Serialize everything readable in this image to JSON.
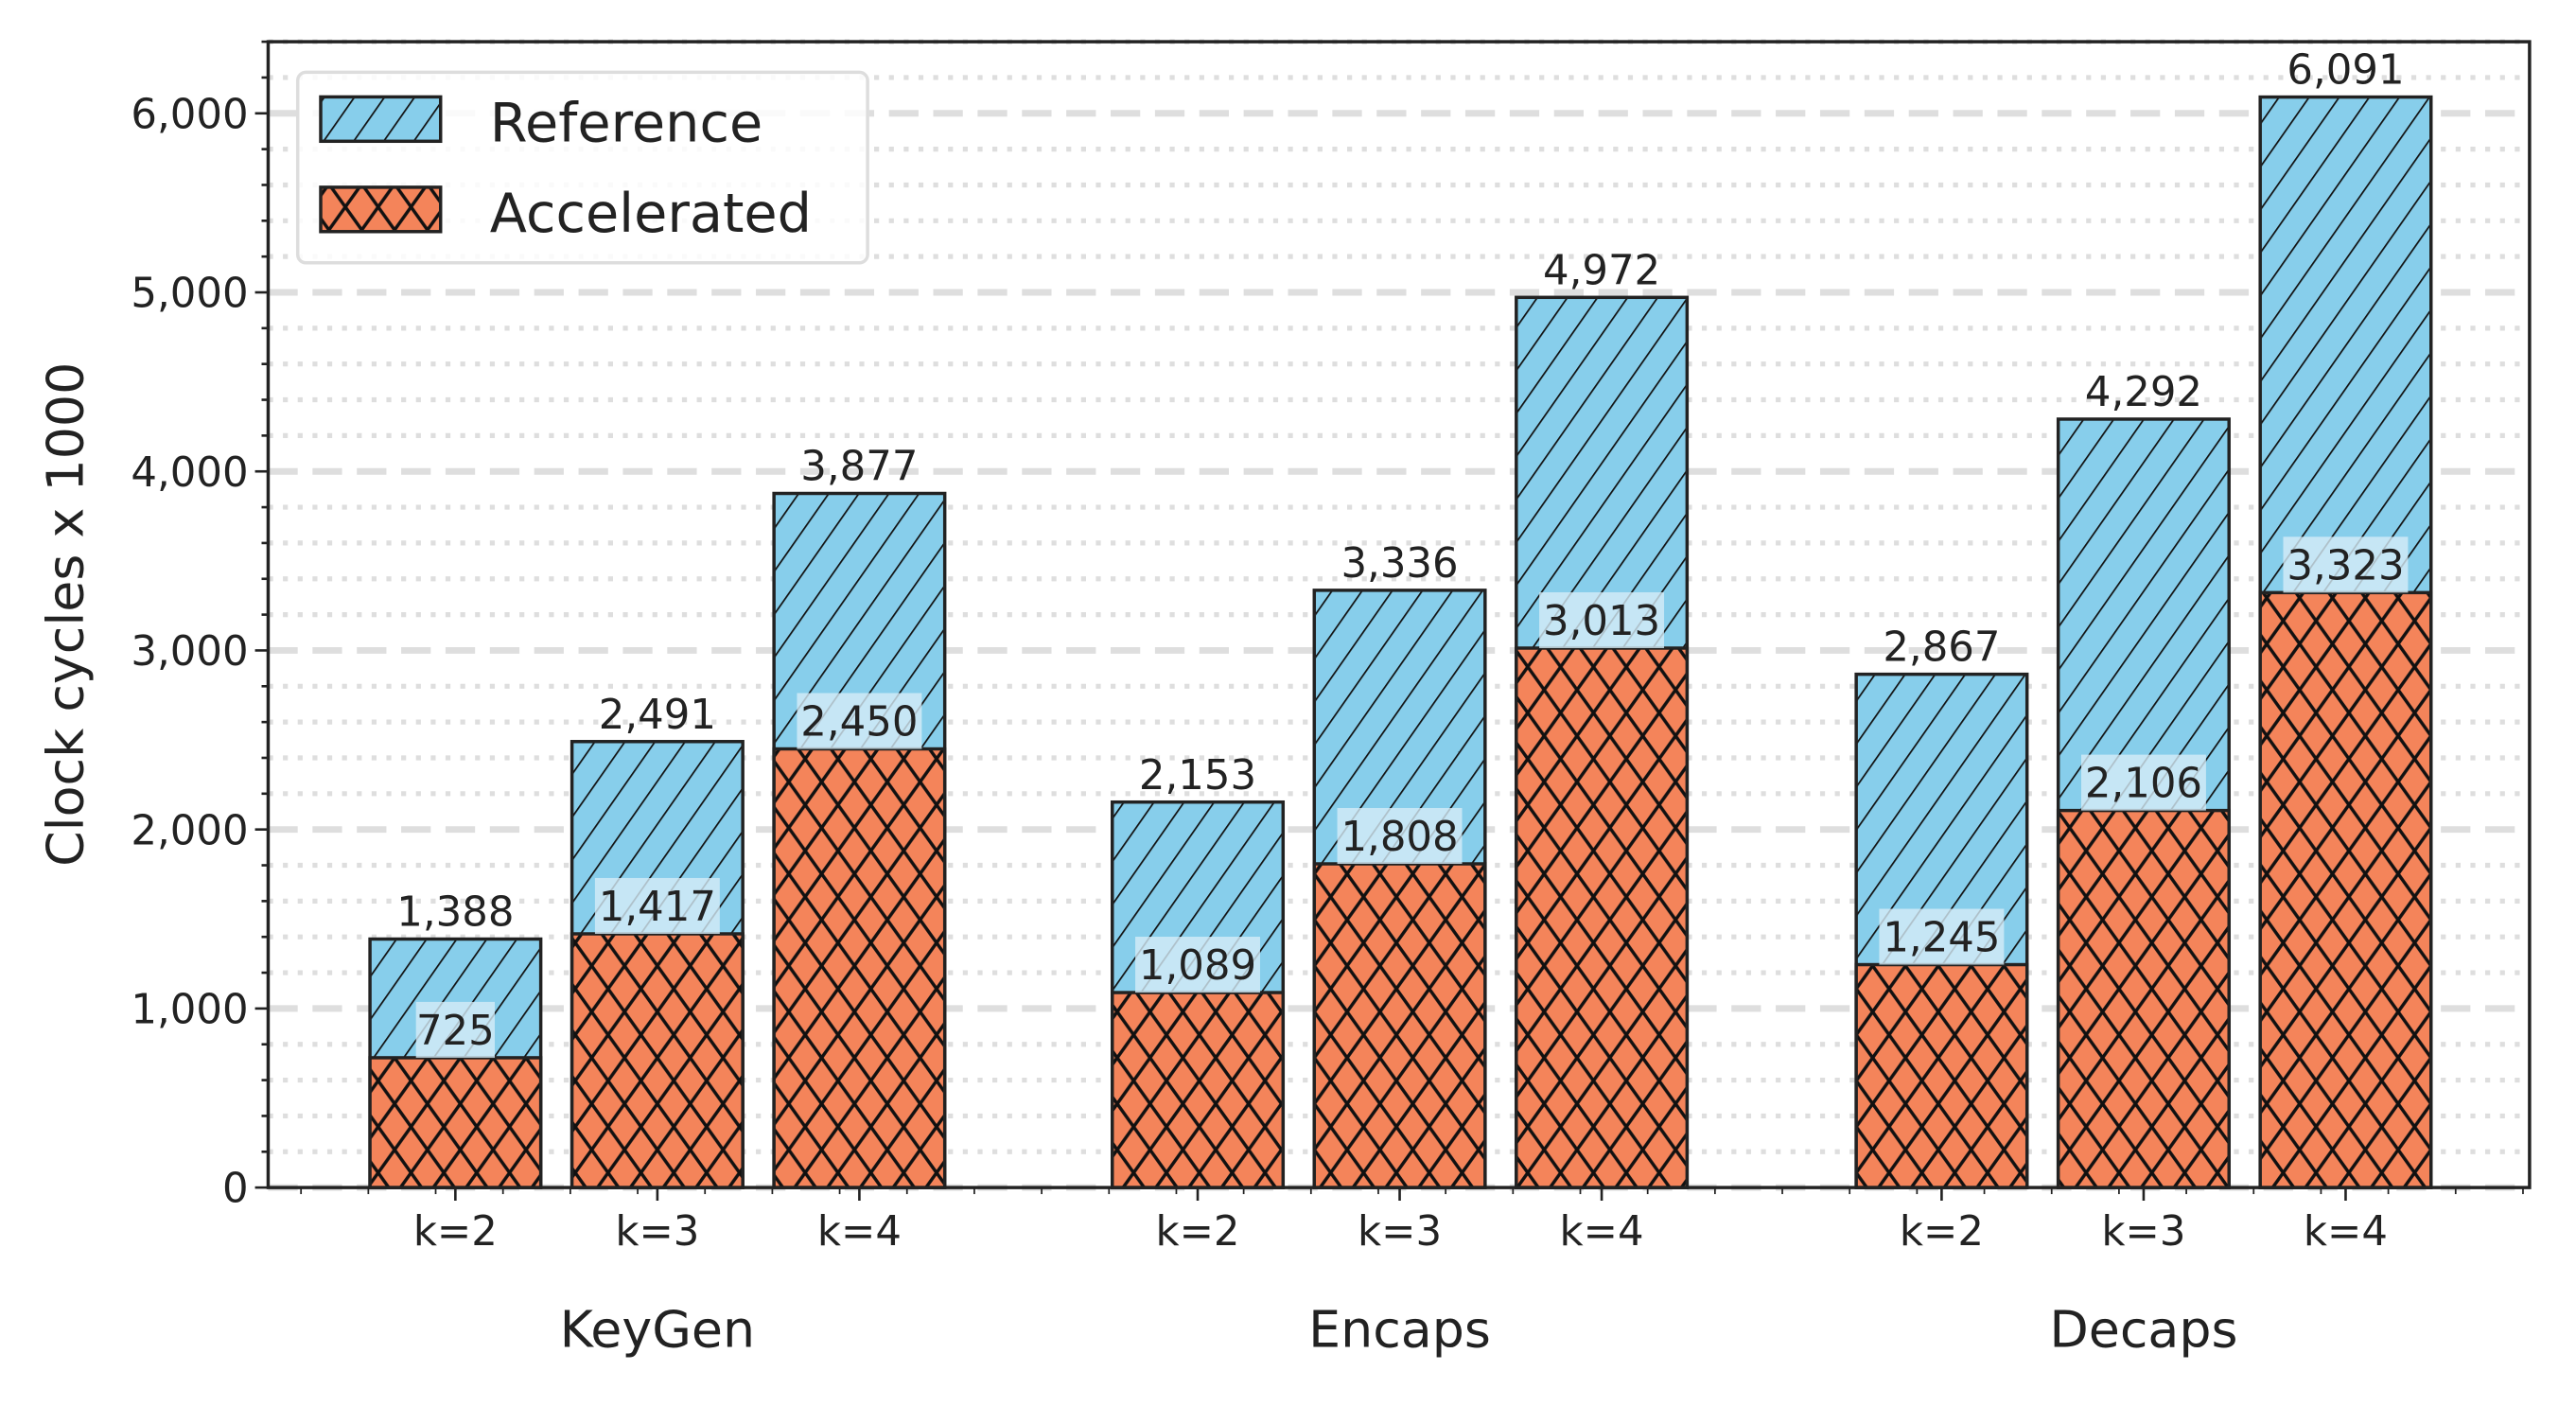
{
  "chart_data": {
    "type": "bar",
    "stacked_overlay": true,
    "groups": [
      "KeyGen",
      "Encaps",
      "Decaps"
    ],
    "categories": [
      "k=2",
      "k=3",
      "k=4"
    ],
    "series": [
      {
        "name": "Reference",
        "color": "#87ceeb",
        "hatch": "diagonal",
        "values": [
          [
            1388,
            2491,
            3877
          ],
          [
            2153,
            3336,
            4972
          ],
          [
            2867,
            4292,
            6091
          ]
        ]
      },
      {
        "name": "Accelerated",
        "color": "#f4845a",
        "hatch": "crosshatch",
        "values": [
          [
            725,
            1417,
            2450
          ],
          [
            1089,
            1808,
            3013
          ],
          [
            1245,
            2106,
            3323
          ]
        ]
      }
    ],
    "ylabel": "Clock cycles x 1000",
    "xlabel": "",
    "ylim": [
      0,
      6400
    ],
    "yticks": [
      "0",
      "1,000",
      "2,000",
      "3,000",
      "4,000",
      "5,000",
      "6,000"
    ],
    "grid": "major dashed, minor dotted (horizontal)",
    "legend": "top-left"
  }
}
